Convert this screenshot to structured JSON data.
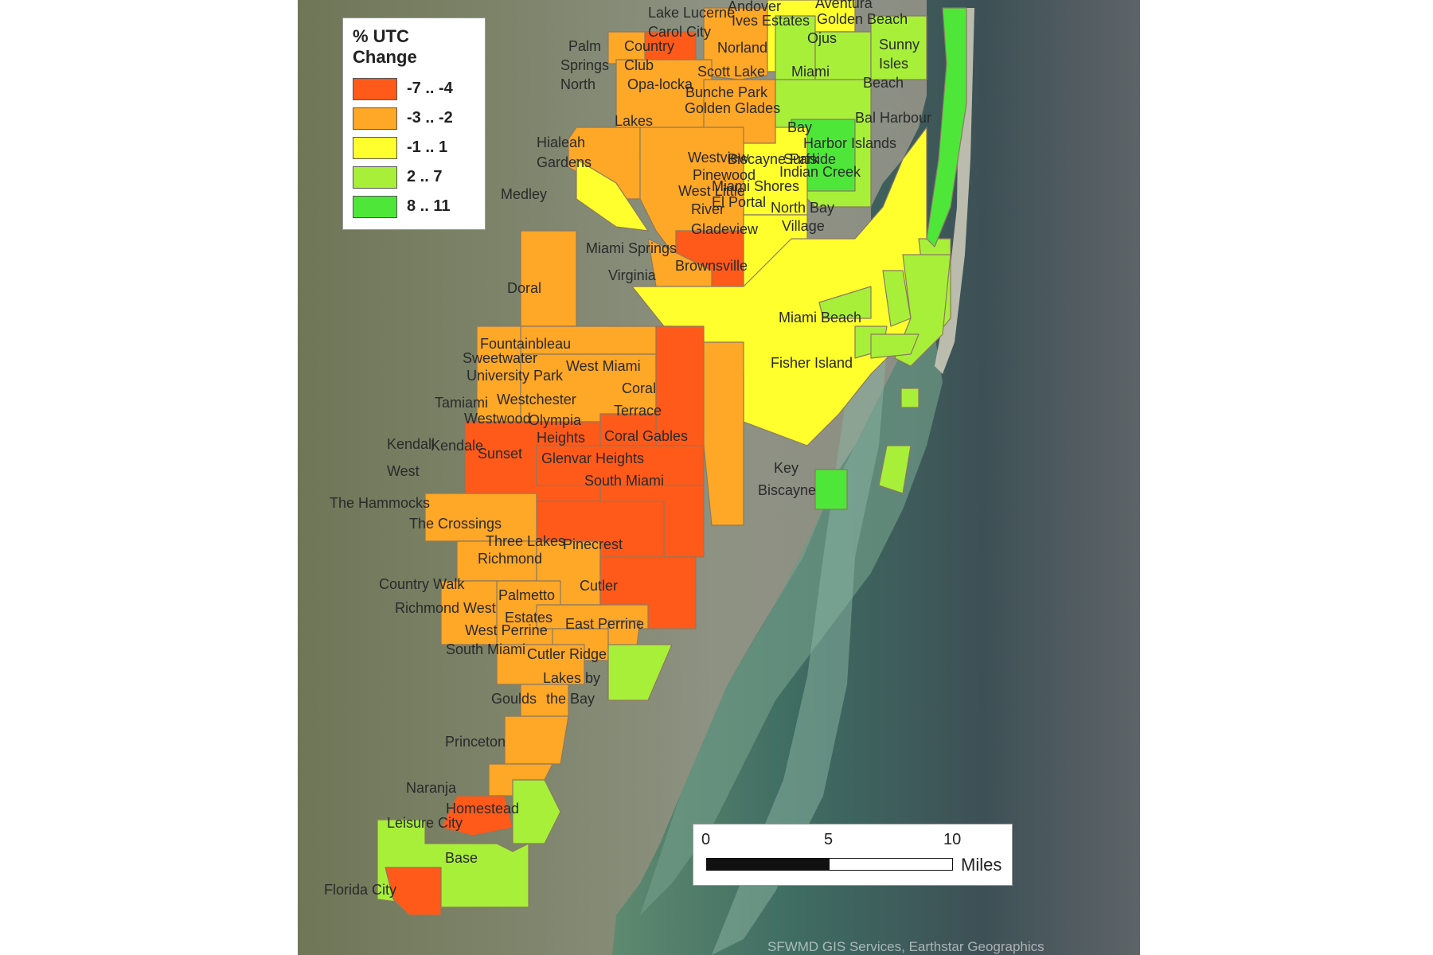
{
  "legend": {
    "title": "% UTC Change",
    "classes": [
      {
        "label": "-7 .. -4",
        "color": "#ff5a1a"
      },
      {
        "label": "-3 .. -2",
        "color": "#ffa726"
      },
      {
        "label": "-1 .. 1",
        "color": "#ffff2e"
      },
      {
        "label": "2 .. 7",
        "color": "#a8ef3a"
      },
      {
        "label": "8 .. 11",
        "color": "#4fe63a"
      }
    ]
  },
  "scale": {
    "ticks": [
      "0",
      "5",
      "10"
    ],
    "units": "Miles"
  },
  "attribution": "SFWMD GIS Services, Earthstar Geographics",
  "places": [
    "Lake Lucerne",
    "Andover",
    "Aventura",
    "Ives Estates",
    "Golden Beach",
    "Carol City",
    "Palm",
    "Country",
    "Springs",
    "Club",
    "North",
    "Norland",
    "Ojus",
    "Sunny",
    "Isles",
    "Beach",
    "Scott Lake",
    "Miami",
    "Opa-locka",
    "Bunche Park",
    "Lakes",
    "Golden Glades",
    "Bal Harbour",
    "Hialeah",
    "Gardens",
    "Bay",
    "Harbor Islands",
    "Westview",
    "Biscayne Park",
    "Surfside",
    "Pinewood",
    "Indian Creek",
    "Medley",
    "West Little",
    "Miami Shores",
    "El Portal",
    "River",
    "North Bay",
    "Gladeview",
    "Village",
    "Miami Springs",
    "Virginia",
    "Brownsville",
    "Doral",
    "Miami Beach",
    "Fountainbleau",
    "Sweetwater",
    "University Park",
    "West Miami",
    "Fisher Island",
    "Coral",
    "Terrace",
    "Tamiami",
    "Westchester",
    "Westwood",
    "Olympia",
    "Heights",
    "Coral Gables",
    "Kendall",
    "West",
    "Kendale",
    "Sunset",
    "Glenvar Heights",
    "South Miami",
    "Key",
    "Biscayne",
    "The Hammocks",
    "The Crossings",
    "Three Lakes",
    "Pinecrest",
    "Richmond",
    "Country Walk",
    "Cutler",
    "Richmond West",
    "Palmetto",
    "Estates",
    "East Perrine",
    "West Perrine",
    "South Miami",
    "Cutler Ridge",
    "Lakes by",
    "the Bay",
    "Goulds",
    "Princeton",
    "Naranja",
    "Homestead",
    "Leisure City",
    "Base",
    "Florida City"
  ]
}
